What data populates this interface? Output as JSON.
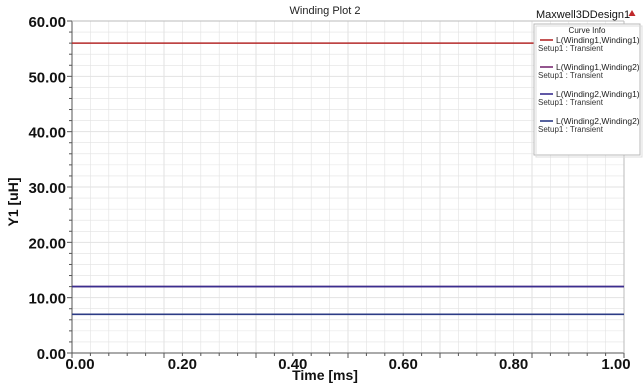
{
  "plot_title": "Winding Plot 2",
  "design_name": "Maxwell3DDesign1",
  "colors": {
    "background": "#ffffff",
    "grid": "#e2e2e2",
    "axis": "#555555",
    "marker": "#c0292b"
  },
  "legend": {
    "title": "Curve Info",
    "entries": [
      {
        "name": "L(Winding1,Winding1)",
        "setup": "Setup1 : Transient",
        "color": "#b52a2a"
      },
      {
        "name": "L(Winding1,Winding2)",
        "setup": "Setup1 : Transient",
        "color": "#7a2c73"
      },
      {
        "name": "L(Winding2,Winding1)",
        "setup": "Setup1 : Transient",
        "color": "#3a2f8f"
      },
      {
        "name": "L(Winding2,Winding2)",
        "setup": "Setup1 : Transient",
        "color": "#2c3b85"
      }
    ]
  },
  "chart_data": {
    "type": "line",
    "title": "Winding Plot 2",
    "xlabel": "Time [ms]",
    "ylabel": "Y1 [uH]",
    "xlim": [
      0,
      1
    ],
    "ylim": [
      0,
      60
    ],
    "xticks": [
      "0.00",
      "0.20",
      "0.40",
      "0.60",
      "0.80",
      "1.00"
    ],
    "yticks": [
      "0.00",
      "10.00",
      "20.00",
      "30.00",
      "40.00",
      "50.00",
      "60.00"
    ],
    "grid": true,
    "legend_position": "top-right",
    "series": [
      {
        "name": "L(Winding1,Winding1)",
        "x": [
          0,
          1
        ],
        "y": [
          56,
          56
        ],
        "color": "#b52a2a"
      },
      {
        "name": "L(Winding1,Winding2)",
        "x": [
          0,
          1
        ],
        "y": [
          12,
          12
        ],
        "color": "#7a2c73"
      },
      {
        "name": "L(Winding2,Winding1)",
        "x": [
          0,
          1
        ],
        "y": [
          12,
          12
        ],
        "color": "#3a2f8f"
      },
      {
        "name": "L(Winding2,Winding2)",
        "x": [
          0,
          1
        ],
        "y": [
          7,
          7
        ],
        "color": "#2c3b85"
      }
    ]
  }
}
